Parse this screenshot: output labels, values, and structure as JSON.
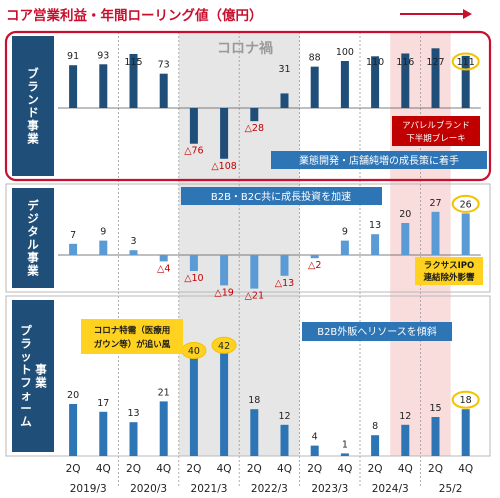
{
  "title": "コア営業利益・年間ローリング値（億円）",
  "colors": {
    "title": "#c8102e",
    "panel_border_main": "#c8102e",
    "panel_border": "#b8b8b8",
    "label_band": "#1f4e79",
    "bar_brand": "#1f4e79",
    "bar_digital": "#5b9bd5",
    "bar_platform": "#2e75b6",
    "covid_shade": "#e6e6e6",
    "highlight_shade": "#f9dcdc",
    "ring": "#f2c200",
    "ring_fill": "#ffd21f",
    "callout_red": "#c00000",
    "callout_blue": "#2e75b6",
    "callout_yellow": "#ffd21f",
    "negative_label": "#c00000"
  },
  "overlay": {
    "covid": "コロナ禍",
    "brand_callout": [
      "アパレルブランド",
      "下半期ブレーキ"
    ],
    "brand_banner": "業態開発・店舗純増の成長策に着手",
    "digital_banner": "B2B・B2C共に成長投資を加速",
    "digital_callout": [
      "ラクサスIPO",
      "連結除外影響"
    ],
    "platform_callout": [
      "コロナ特需（医療用",
      "ガウン等）が追い風"
    ],
    "platform_banner": "B2B外販へリソースを傾斜"
  },
  "chart_data": [
    {
      "type": "bar",
      "panel": "ブランド事業",
      "categories": [
        "2Q",
        "4Q",
        "2Q",
        "4Q",
        "2Q",
        "4Q",
        "2Q",
        "4Q",
        "2Q",
        "4Q",
        "2Q",
        "4Q",
        "2Q",
        "4Q"
      ],
      "years": [
        "2019/3",
        "2020/3",
        "2021/3",
        "2022/3",
        "2023/3",
        "2024/3",
        "25/2"
      ],
      "values": [
        91,
        93,
        115,
        73,
        -76,
        -108,
        -28,
        31,
        88,
        100,
        110,
        116,
        127,
        111
      ],
      "labels": [
        "91",
        "93",
        "115",
        "73",
        "△76",
        "△108",
        "△28",
        "31",
        "88",
        "100",
        "110",
        "116",
        "127",
        "111"
      ]
    },
    {
      "type": "bar",
      "panel": "デジタル事業",
      "categories": [
        "2Q",
        "4Q",
        "2Q",
        "4Q",
        "2Q",
        "4Q",
        "2Q",
        "4Q",
        "2Q",
        "4Q",
        "2Q",
        "4Q",
        "2Q",
        "4Q"
      ],
      "values": [
        7,
        9,
        3,
        -4,
        -10,
        -19,
        -21,
        -13,
        -2,
        9,
        13,
        20,
        27,
        26
      ],
      "labels": [
        "7",
        "9",
        "3",
        "△4",
        "△10",
        "△19",
        "△21",
        "△13",
        "△2",
        "9",
        "13",
        "20",
        "27",
        "26"
      ]
    },
    {
      "type": "bar",
      "panel": "プラットフォーム事業",
      "categories": [
        "2Q",
        "4Q",
        "2Q",
        "4Q",
        "2Q",
        "4Q",
        "2Q",
        "4Q",
        "2Q",
        "4Q",
        "2Q",
        "4Q",
        "2Q",
        "4Q"
      ],
      "values": [
        20,
        17,
        13,
        21,
        40,
        42,
        18,
        12,
        4,
        1,
        8,
        12,
        15,
        18
      ],
      "labels": [
        "20",
        "17",
        "13",
        "21",
        "40",
        "42",
        "18",
        "12",
        "4",
        "1",
        "8",
        "12",
        "15",
        "18"
      ]
    }
  ]
}
